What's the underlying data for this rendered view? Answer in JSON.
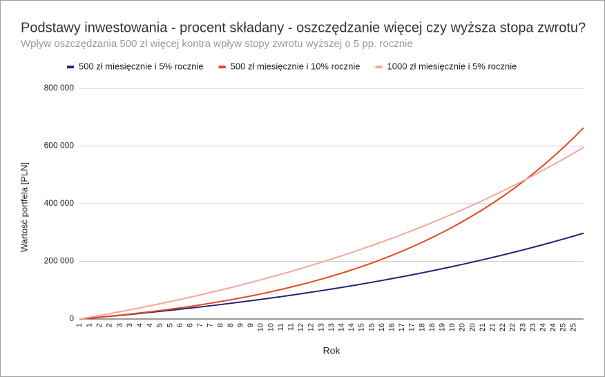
{
  "chart_data": {
    "type": "line",
    "title": "Podstawy inwestowania - procent składany - oszczędzanie więcej czy wyższa stopa zwrotu?",
    "subtitle": "Wpływ oszczędzania 500 zł więcej kontra wpływ stopy zwrotu wyższej o 5 pp. rocznie",
    "x_label": "Rok",
    "y_label": "Wartość portfela [PLN]",
    "categories": [
      "1",
      "1",
      "2",
      "2",
      "3",
      "3",
      "4",
      "4",
      "5",
      "5",
      "6",
      "6",
      "7",
      "7",
      "8",
      "8",
      "9",
      "9",
      "10",
      "10",
      "11",
      "11",
      "12",
      "12",
      "13",
      "13",
      "14",
      "14",
      "15",
      "15",
      "16",
      "16",
      "17",
      "17",
      "18",
      "18",
      "19",
      "19",
      "20",
      "20",
      "21",
      "21",
      "22",
      "22",
      "23",
      "23",
      "24",
      "24",
      "25",
      "25",
      null
    ],
    "series": [
      {
        "name": "500 zł miesięcznie i 5% rocznie",
        "color": "#23217a",
        "values": [
          0,
          3031,
          6139,
          9326,
          12593,
          15942,
          19376,
          22897,
          26507,
          30208,
          34003,
          37893,
          41882,
          45972,
          50164,
          54463,
          58870,
          63389,
          68021,
          72771,
          77641,
          82634,
          87752,
          93001,
          98381,
          103898,
          109554,
          115353,
          121299,
          127394,
          133644,
          140051,
          146620,
          153355,
          160261,
          167341,
          174600,
          182042,
          189672,
          197495,
          205515,
          213738,
          222169,
          230813,
          239675,
          248761,
          258077,
          267628,
          277420,
          287459,
          297753
        ]
      },
      {
        "name": "500 zł miesięcznie i 10% rocznie",
        "color": "#e2471d",
        "values": [
          0,
          3063,
          6283,
          9667,
          13223,
          16962,
          20891,
          25021,
          29361,
          33923,
          38719,
          43758,
          49056,
          54623,
          60475,
          66626,
          73091,
          79885,
          87027,
          94533,
          102422,
          110714,
          119430,
          128591,
          138219,
          148338,
          158975,
          170154,
          181904,
          194254,
          207235,
          220879,
          235218,
          250290,
          266131,
          282781,
          300281,
          318675,
          338007,
          358327,
          379684,
          402132,
          425725,
          450523,
          476587,
          503981,
          532774,
          563037,
          594840,
          628260,
          663414
        ]
      },
      {
        "name": "1000 zł miesięcznie i 5% rocznie",
        "color": "#f3a699",
        "values": [
          0,
          6062,
          12278,
          18652,
          25186,
          31884,
          38752,
          45794,
          53014,
          60416,
          68006,
          75786,
          83764,
          91944,
          100328,
          108926,
          117740,
          126778,
          136042,
          145542,
          155282,
          165268,
          175504,
          186002,
          196762,
          207796,
          219108,
          230706,
          242598,
          254788,
          267288,
          280102,
          293240,
          306710,
          320522,
          334682,
          349200,
          364084,
          379344,
          394990,
          411030,
          427476,
          444338,
          461626,
          479350,
          497522,
          516154,
          535256,
          554840,
          574918,
          595506
        ]
      }
    ],
    "ylim": [
      0,
      800000
    ],
    "yticks": [
      0,
      {
        "value": 200000,
        "label": "200 000"
      },
      {
        "value": 400000,
        "label": "400 000"
      },
      {
        "value": 600000,
        "label": "600 000"
      },
      {
        "value": 800000,
        "label": "800 000"
      }
    ],
    "grid": true
  }
}
